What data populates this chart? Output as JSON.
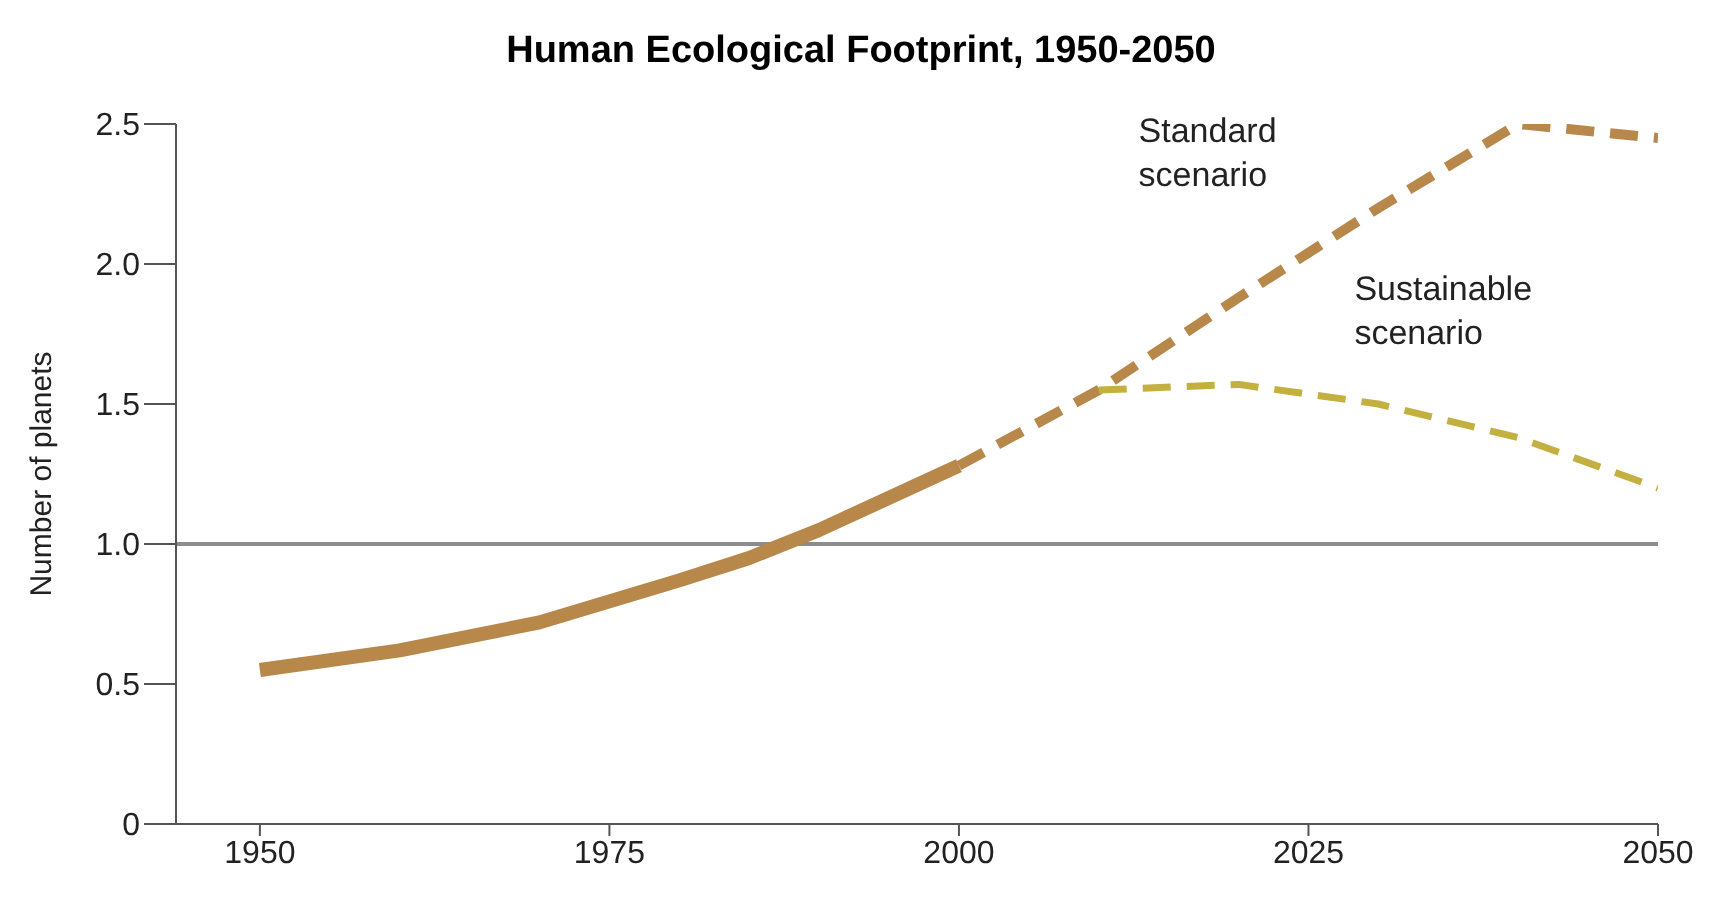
{
  "chart_data": {
    "type": "line",
    "title": "Human Ecological Footprint, 1950-2050",
    "ylabel": "Number of planets",
    "xlim": [
      1944,
      2050
    ],
    "xticks": [
      1950,
      1975,
      2000,
      2025,
      2050
    ],
    "ylim": [
      0,
      2.5
    ],
    "yticks": [
      0,
      {
        "value": 0.5,
        "label": "0.5"
      },
      {
        "value": 1,
        "label": "1.0"
      },
      {
        "value": 1.5,
        "label": "1.5"
      },
      {
        "value": 2,
        "label": "2.0"
      },
      {
        "value": 2.5,
        "label": "2.5"
      }
    ],
    "marker": "none",
    "ref_lines": [
      {
        "axis": "y",
        "value": 1,
        "color": "#8c8c8c",
        "line_style": "solid"
      }
    ],
    "series": [
      {
        "color": "#b8874a",
        "line_style": "solid",
        "x": [
          1950,
          1960,
          1970,
          1980,
          1985,
          1990,
          2000
        ],
        "values": [
          0.55,
          0.62,
          0.72,
          0.87,
          0.95,
          1.05,
          1.28
        ]
      },
      {
        "name": "Standard scenario",
        "color": "#b8874a",
        "line_style": "dashed",
        "x": [
          2000,
          2010,
          2020,
          2030,
          2040,
          2050
        ],
        "values": [
          1.28,
          1.55,
          1.88,
          2.2,
          2.5,
          2.45
        ]
      },
      {
        "name": "Sustainable scenario",
        "color": "#c4b040",
        "line_style": "dashed",
        "x": [
          2010,
          2020,
          2030,
          2040,
          2050
        ],
        "values": [
          1.55,
          1.57,
          1.5,
          1.38,
          1.2
        ]
      }
    ]
  }
}
